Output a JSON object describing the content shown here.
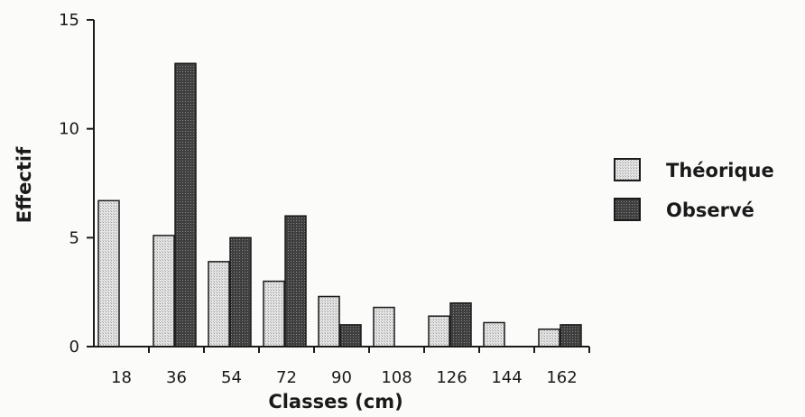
{
  "chart_data": {
    "type": "bar",
    "categories": [
      "18",
      "36",
      "54",
      "72",
      "90",
      "108",
      "126",
      "144",
      "162"
    ],
    "series": [
      {
        "name": "Théorique",
        "values": [
          6.7,
          5.1,
          3.9,
          3.0,
          2.3,
          1.8,
          1.4,
          1.1,
          0.8
        ],
        "color": "#d6d6d6"
      },
      {
        "name": "Observé",
        "values": [
          0,
          13,
          5,
          6,
          1,
          0,
          2,
          0,
          1
        ],
        "color": "#4a4a4a"
      }
    ],
    "title": "",
    "xlabel": "Classes (cm)",
    "ylabel": "Effectif",
    "ylim": [
      0,
      15
    ],
    "yticks": [
      0,
      5,
      10,
      15
    ],
    "grid": false,
    "legend_position": "right"
  }
}
